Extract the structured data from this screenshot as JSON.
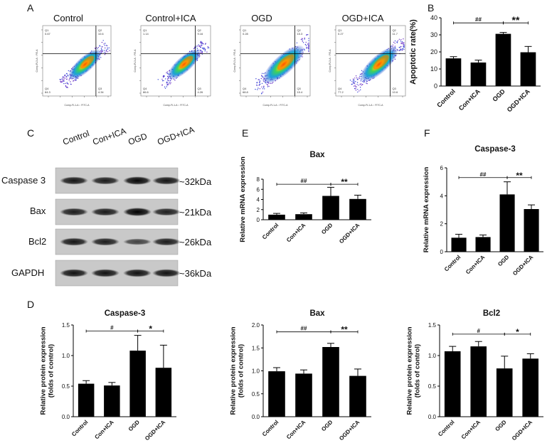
{
  "panels": {
    "A": {
      "letter": "A",
      "flow_titles": [
        "Control",
        "Control+ICA",
        "OGD",
        "OGD+ICA"
      ],
      "plots": [
        {
          "q1": "Q1",
          "q1v": "0.67",
          "q2": "Q2",
          "q2v": "10.6",
          "q3": "Q3",
          "q3v": "4.34",
          "q4": "Q4",
          "q4v": "84.3"
        },
        {
          "q1": "Q1",
          "q1v": "1.14",
          "q2": "Q2",
          "q2v": "9.16",
          "q3": "Q3",
          "q3v": "4.26",
          "q4": "Q4",
          "q4v": "86.6"
        },
        {
          "q1": "Q1",
          "q1v": "0.28",
          "q2": "Q2",
          "q2v": "15.3",
          "q3": "Q3",
          "q3v": "15.4",
          "q4": "Q4",
          "q4v": "68.8"
        },
        {
          "q1": "Q1",
          "q1v": "0.27",
          "q2": "Q2",
          "q2v": "11.7",
          "q3": "Q3",
          "q3v": "10.6",
          "q4": "Q4",
          "q4v": "77.2"
        }
      ],
      "x_axis_label": "Comp-FL1-A :: FITC-A",
      "y_axis_label": "Comp-FL3-A :: PE-A"
    },
    "C": {
      "letter": "C",
      "columns": [
        "Control",
        "Con+ICA",
        "OGD",
        "OGD+ICA"
      ],
      "rows": [
        {
          "name": "Caspase 3",
          "kda": "~32kDa",
          "intensity": [
            0.85,
            0.8,
            0.95,
            0.85
          ]
        },
        {
          "name": "Bax",
          "kda": "~21kDa",
          "intensity": [
            0.8,
            0.82,
            1.0,
            0.78
          ]
        },
        {
          "name": "Bcl2",
          "kda": "~26kDa",
          "intensity": [
            0.85,
            0.8,
            0.5,
            0.8
          ]
        },
        {
          "name": "GAPDH",
          "kda": "~36kDa",
          "intensity": [
            0.88,
            0.88,
            0.88,
            0.88
          ]
        }
      ]
    },
    "D": {
      "letter": "D"
    },
    "E": {
      "letter": "E"
    },
    "F": {
      "letter": "F"
    },
    "B": {
      "letter": "B"
    }
  },
  "chart_data": [
    {
      "id": "B",
      "type": "bar",
      "title": "",
      "ylabel": "Apoptotic rate(%)",
      "categories": [
        "Control",
        "Con+ICA",
        "OGD",
        "OGD+ICA"
      ],
      "values": [
        16.2,
        13.8,
        30.6,
        19.8
      ],
      "errors": [
        1.0,
        1.4,
        0.8,
        3.4
      ],
      "ylim": [
        0,
        40
      ],
      "yticks": [
        "0",
        "10",
        "20",
        "30",
        "40"
      ],
      "sig": [
        {
          "from": 0,
          "to": 2,
          "label": "##",
          "y": 37.0
        },
        {
          "from": 2,
          "to": 3,
          "label": "**",
          "y": 37.0
        }
      ]
    },
    {
      "id": "E",
      "type": "bar",
      "title": "Bax",
      "ylabel": "Relative mRNA expression",
      "categories": [
        "Control",
        "Con+ICA",
        "OGD",
        "OGD+ICA"
      ],
      "values": [
        1.0,
        1.1,
        4.7,
        4.1
      ],
      "errors": [
        0.25,
        0.25,
        1.7,
        0.75
      ],
      "ylim": [
        0,
        8
      ],
      "yticks": [
        "0",
        "2",
        "4",
        "6",
        "8"
      ],
      "sig": [
        {
          "from": 0,
          "to": 2,
          "label": "##",
          "y": 7.0
        },
        {
          "from": 2,
          "to": 3,
          "label": "**",
          "y": 7.0
        }
      ]
    },
    {
      "id": "F",
      "type": "bar",
      "title": "Caspase-3",
      "ylabel": "Relative mRNA expression",
      "categories": [
        "Control",
        "Con+ICA",
        "OGD",
        "OGD+ICA"
      ],
      "values": [
        1.0,
        1.05,
        4.1,
        3.05
      ],
      "errors": [
        0.25,
        0.15,
        0.9,
        0.3
      ],
      "ylim": [
        0,
        6
      ],
      "yticks": [
        "0",
        "2",
        "4",
        "6"
      ],
      "sig": [
        {
          "from": 0,
          "to": 2,
          "label": "##",
          "y": 5.3
        },
        {
          "from": 2,
          "to": 3,
          "label": "**",
          "y": 5.3
        }
      ]
    },
    {
      "id": "D1",
      "type": "bar",
      "title": "Caspase-3",
      "ylabel": "Relative protein expression\n(folds of control)",
      "categories": [
        "Control",
        "Con+ICA",
        "OGD",
        "OGD+ICA"
      ],
      "values": [
        0.54,
        0.51,
        1.08,
        0.8
      ],
      "errors": [
        0.05,
        0.05,
        0.25,
        0.37
      ],
      "ylim": [
        0,
        1.5
      ],
      "yticks": [
        "0.0",
        "0.5",
        "1.0",
        "1.5"
      ],
      "sig": [
        {
          "from": 0,
          "to": 2,
          "label": "#",
          "y": 1.4
        },
        {
          "from": 2,
          "to": 3,
          "label": "*",
          "y": 1.4
        }
      ]
    },
    {
      "id": "D2",
      "type": "bar",
      "title": "Bax",
      "ylabel": "Relative protein expression\n(folds of control)",
      "categories": [
        "Control",
        "Con+ICA",
        "OGD",
        "OGD+ICA"
      ],
      "values": [
        0.99,
        0.94,
        1.52,
        0.89
      ],
      "errors": [
        0.08,
        0.08,
        0.08,
        0.15
      ],
      "ylim": [
        0,
        2.0
      ],
      "yticks": [
        "0.0",
        "0.5",
        "1.0",
        "1.5",
        "2.0"
      ],
      "sig": [
        {
          "from": 0,
          "to": 2,
          "label": "##",
          "y": 1.85
        },
        {
          "from": 2,
          "to": 3,
          "label": "**",
          "y": 1.85
        }
      ]
    },
    {
      "id": "D3",
      "type": "bar",
      "title": "Bcl2",
      "ylabel": "Relative protein expression\n(folds of control)",
      "categories": [
        "Control",
        "Con+ICA",
        "OGD",
        "OGD+ICA"
      ],
      "values": [
        1.07,
        1.15,
        0.79,
        0.95
      ],
      "errors": [
        0.08,
        0.08,
        0.2,
        0.08
      ],
      "ylim": [
        0,
        1.5
      ],
      "yticks": [
        "0.0",
        "0.5",
        "1.0",
        "1.5"
      ],
      "sig": [
        {
          "from": 0,
          "to": 2,
          "label": "#",
          "y": 1.35
        },
        {
          "from": 2,
          "to": 3,
          "label": "*",
          "y": 1.35
        }
      ]
    }
  ],
  "colors": {
    "bar": "#000000",
    "axis": "#000000",
    "text": "#111111"
  }
}
